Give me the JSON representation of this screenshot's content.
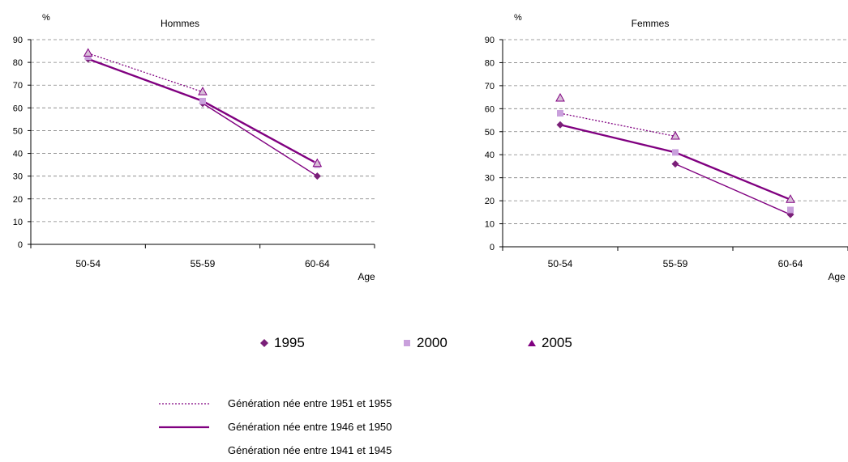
{
  "chart_data": [
    {
      "type": "line",
      "title": "Hommes",
      "ylabel": "%",
      "xlabel": "Age",
      "categories": [
        "50-54",
        "55-59",
        "60-64"
      ],
      "ylim": [
        0,
        90
      ],
      "yticks": [
        0,
        10,
        20,
        30,
        40,
        50,
        60,
        70,
        80,
        90
      ],
      "grid": "horizontal-dashed",
      "points": [
        {
          "name": "1995",
          "values": [
            81.5,
            62,
            30
          ]
        },
        {
          "name": "2000",
          "values": [
            82.5,
            63,
            35
          ]
        },
        {
          "name": "2005",
          "values": [
            84,
            67,
            35.5
          ]
        }
      ],
      "generations": [
        {
          "name": "Génération née entre 1951 et 1955",
          "style": "dotted",
          "values": [
            84,
            67,
            null
          ]
        },
        {
          "name": "Génération née entre 1946 et 1950",
          "style": "solid-thick",
          "values": [
            81.5,
            63,
            35.5
          ]
        },
        {
          "name": "Génération née entre 1941 et 1945",
          "style": "solid-thin",
          "values": [
            null,
            62,
            30
          ]
        }
      ]
    },
    {
      "type": "line",
      "title": "Femmes",
      "ylabel": "%",
      "xlabel": "Age",
      "categories": [
        "50-54",
        "55-59",
        "60-64"
      ],
      "ylim": [
        0,
        90
      ],
      "yticks": [
        0,
        10,
        20,
        30,
        40,
        50,
        60,
        70,
        80,
        90
      ],
      "grid": "horizontal-dashed",
      "points": [
        {
          "name": "1995",
          "values": [
            53,
            36,
            14
          ]
        },
        {
          "name": "2000",
          "values": [
            58,
            41,
            16
          ]
        },
        {
          "name": "2005",
          "values": [
            64.5,
            48,
            20.5
          ]
        }
      ],
      "generations": [
        {
          "name": "Génération née entre 1951 et 1955",
          "style": "dotted",
          "values": [
            58,
            48,
            null
          ]
        },
        {
          "name": "Génération née entre 1946 et 1950",
          "style": "solid-thick",
          "values": [
            53,
            41,
            20.5
          ]
        },
        {
          "name": "Génération née entre 1941 et 1945",
          "style": "solid-thin",
          "values": [
            null,
            36,
            14
          ]
        }
      ]
    }
  ],
  "legend": {
    "markers": [
      {
        "label": "1995",
        "shape": "diamond",
        "color": "#7a1f78"
      },
      {
        "label": "2000",
        "shape": "square",
        "color": "#c9a0dc"
      },
      {
        "label": "2005",
        "shape": "triangle",
        "color": "#800080"
      }
    ],
    "lines": [
      {
        "label": "Génération née entre 1951 et 1955",
        "style": "dotted"
      },
      {
        "label": "Génération née entre 1946 et 1950",
        "style": "solid-thick"
      },
      {
        "label": "Génération née entre 1941 et 1945",
        "style": "none"
      }
    ]
  },
  "colors": {
    "line": "#800080",
    "diamond": "#7a1f78",
    "square": "#c9a0dc",
    "triangle_fill": "#d8bfd8",
    "triangle_stroke": "#800080",
    "grid": "#808080"
  }
}
